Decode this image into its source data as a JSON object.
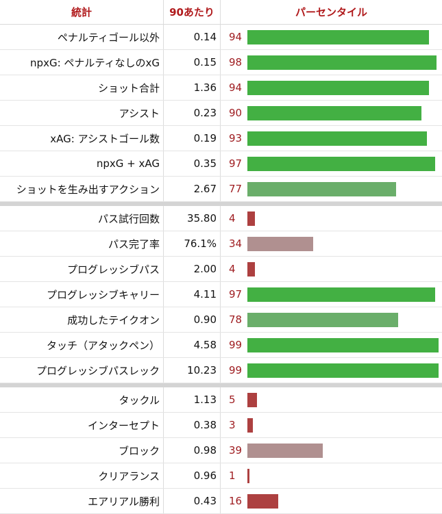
{
  "header": {
    "stat": "統計",
    "per90": "90あたり",
    "percentile": "パーセンタイル"
  },
  "colors": {
    "elite": "#43b043",
    "good": "#6aae6a",
    "average": "#b09090",
    "poor": "#ad4040",
    "header_text": "#b0191b",
    "percentile_text": "#9e1b1f"
  },
  "chart_data": {
    "type": "bar",
    "title": "",
    "xlabel": "パーセンタイル",
    "xlim": [
      0,
      100
    ],
    "groups": [
      {
        "rows": [
          {
            "stat": "ペナルティゴール以外",
            "per90": "0.14",
            "percentile": 94
          },
          {
            "stat": "npxG: ペナルティなしのxG",
            "per90": "0.15",
            "percentile": 98
          },
          {
            "stat": "ショット合計",
            "per90": "1.36",
            "percentile": 94
          },
          {
            "stat": "アシスト",
            "per90": "0.23",
            "percentile": 90
          },
          {
            "stat": "xAG: アシストゴール数",
            "per90": "0.19",
            "percentile": 93
          },
          {
            "stat": "npxG + xAG",
            "per90": "0.35",
            "percentile": 97
          },
          {
            "stat": "ショットを生み出すアクション",
            "per90": "2.67",
            "percentile": 77
          }
        ]
      },
      {
        "rows": [
          {
            "stat": "パス試行回数",
            "per90": "35.80",
            "percentile": 4
          },
          {
            "stat": "パス完了率",
            "per90": "76.1%",
            "percentile": 34
          },
          {
            "stat": "プログレッシブパス",
            "per90": "2.00",
            "percentile": 4
          },
          {
            "stat": "プログレッシブキャリー",
            "per90": "4.11",
            "percentile": 97
          },
          {
            "stat": "成功したテイクオン",
            "per90": "0.90",
            "percentile": 78
          },
          {
            "stat": "タッチ（アタックペン）",
            "per90": "4.58",
            "percentile": 99
          },
          {
            "stat": "プログレッシブパスレック",
            "per90": "10.23",
            "percentile": 99
          }
        ]
      },
      {
        "rows": [
          {
            "stat": "タックル",
            "per90": "1.13",
            "percentile": 5
          },
          {
            "stat": "インターセプト",
            "per90": "0.38",
            "percentile": 3
          },
          {
            "stat": "ブロック",
            "per90": "0.98",
            "percentile": 39
          },
          {
            "stat": "クリアランス",
            "per90": "0.96",
            "percentile": 1
          },
          {
            "stat": "エアリアル勝利",
            "per90": "0.43",
            "percentile": 16
          }
        ]
      }
    ]
  }
}
